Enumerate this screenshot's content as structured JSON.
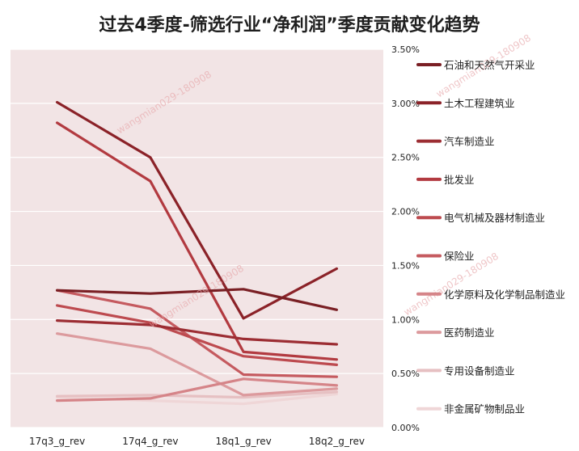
{
  "chart_data": {
    "type": "line",
    "title": "过去4季度-筛选行业“净利润”季度贡献变化趋势",
    "xlabel": "",
    "ylabel": "",
    "x": [
      "17q3_g_rev",
      "17q4_g_rev",
      "18q1_g_rev",
      "18q2_g_rev"
    ],
    "ylim": [
      0,
      0.035
    ],
    "y_ticks": [
      "0.00%",
      "0.50%",
      "1.00%",
      "1.50%",
      "2.00%",
      "2.50%",
      "3.00%",
      "3.50%"
    ],
    "y_axis_position": "right",
    "grid": true,
    "legend_position": "right",
    "series": [
      {
        "name": "石油和天然气开采业",
        "color": "#7a1f24",
        "values": [
          0.0127,
          0.0124,
          0.0128,
          0.0109
        ]
      },
      {
        "name": "土木工程建筑业",
        "color": "#8b2228",
        "values": [
          0.0301,
          0.025,
          0.0101,
          0.0147
        ]
      },
      {
        "name": "汽车制造业",
        "color": "#9c2d33",
        "values": [
          0.0099,
          0.0095,
          0.0082,
          0.0077
        ]
      },
      {
        "name": "批发业",
        "color": "#b23a40",
        "values": [
          0.0282,
          0.0228,
          0.007,
          0.0063
        ]
      },
      {
        "name": "电气机械及器材制造业",
        "color": "#bd4a4f",
        "values": [
          0.0113,
          0.0097,
          0.0066,
          0.0058
        ]
      },
      {
        "name": "保险业",
        "color": "#c55a5f",
        "values": [
          0.0127,
          0.011,
          0.0049,
          0.0047
        ]
      },
      {
        "name": "化学原料及化学制品制造业",
        "color": "#d58488",
        "values": [
          0.0025,
          0.0027,
          0.0045,
          0.0039
        ]
      },
      {
        "name": "医药制造业",
        "color": "#dc9a9d",
        "values": [
          0.0087,
          0.0073,
          0.003,
          0.0036
        ]
      },
      {
        "name": "专用设备制造业",
        "color": "#e6c0c2",
        "values": [
          0.0029,
          0.003,
          0.0028,
          0.0033
        ]
      },
      {
        "name": "非金属矿物制品业",
        "color": "#efd6d7",
        "values": [
          0.0028,
          0.0025,
          0.0022,
          0.0031
        ]
      }
    ],
    "watermarks": [
      "wangmian029-180908",
      "wangmian029-180908",
      "wangmian029-180908",
      "wangmian029-180908"
    ]
  }
}
